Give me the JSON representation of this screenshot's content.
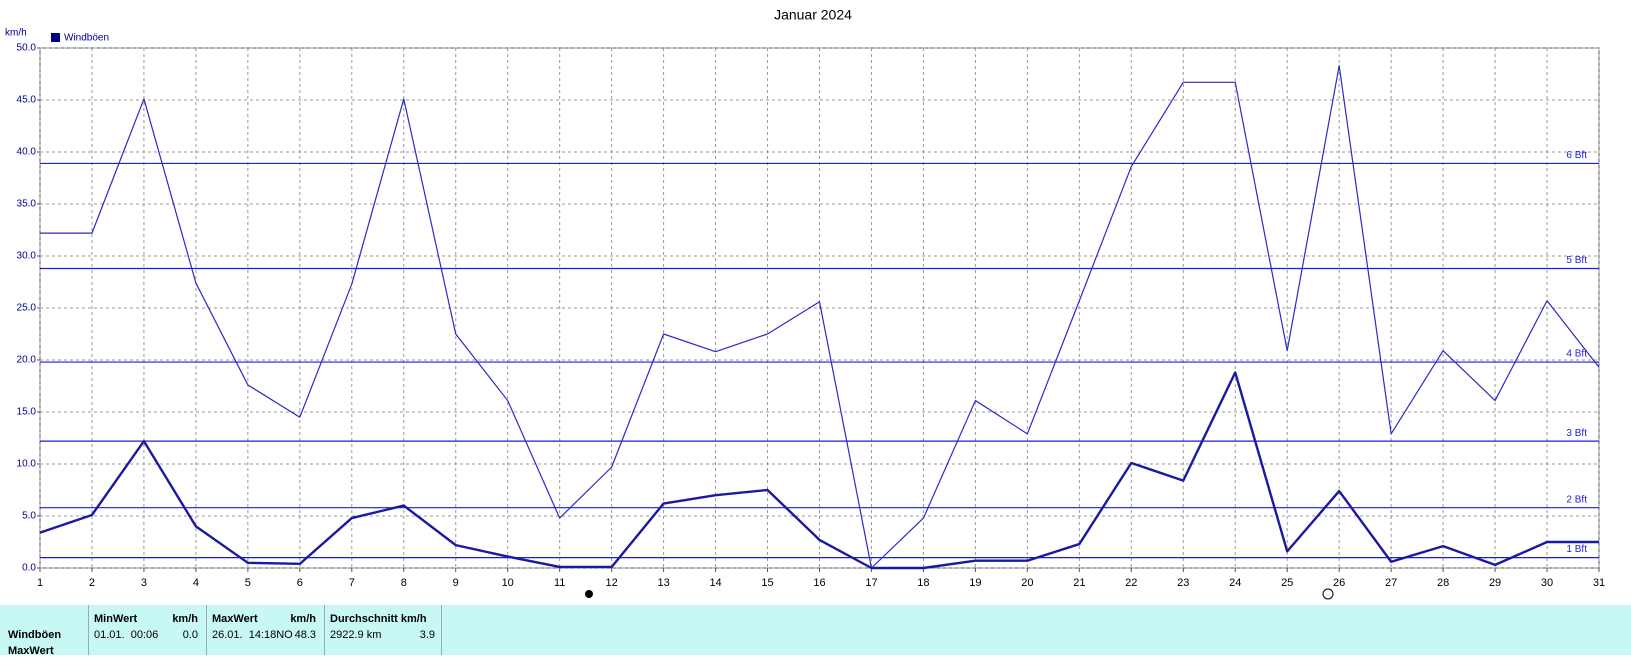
{
  "chart_data": {
    "type": "line",
    "title": "Januar 2024",
    "y_unit": "km/h",
    "x": [
      1,
      2,
      3,
      4,
      5,
      6,
      7,
      8,
      9,
      10,
      11,
      12,
      13,
      14,
      15,
      16,
      17,
      18,
      19,
      20,
      21,
      22,
      23,
      24,
      25,
      26,
      27,
      28,
      29,
      30,
      31
    ],
    "xlim": [
      1,
      31
    ],
    "xticks": [
      1,
      2,
      3,
      4,
      5,
      6,
      7,
      8,
      9,
      10,
      11,
      12,
      13,
      14,
      15,
      16,
      17,
      18,
      19,
      20,
      21,
      22,
      23,
      24,
      25,
      26,
      27,
      28,
      29,
      30,
      31
    ],
    "ylim": [
      0,
      50
    ],
    "yticks": [
      {
        "value": 0,
        "label": "0.0"
      },
      {
        "value": 5,
        "label": "5.0"
      },
      {
        "value": 10,
        "label": "10.0"
      },
      {
        "value": 15,
        "label": "15.0"
      },
      {
        "value": 20,
        "label": "20.0"
      },
      {
        "value": 25,
        "label": "25.0"
      },
      {
        "value": 30,
        "label": "30.0"
      },
      {
        "value": 35,
        "label": "35.0"
      },
      {
        "value": 40,
        "label": "40.0"
      },
      {
        "value": 45,
        "label": "45.0"
      },
      {
        "value": 50,
        "label": "50.0"
      }
    ],
    "grid": true,
    "legend": "top-left",
    "series": [
      {
        "name": "Windböen",
        "color": "#00008b",
        "line_color": "#2a2ac8",
        "values": [
          32.2,
          32.2,
          45.1,
          27.4,
          17.6,
          14.5,
          27.3,
          45.1,
          22.5,
          16.1,
          4.8,
          9.7,
          22.5,
          20.8,
          22.5,
          25.6,
          0,
          4.8,
          16.1,
          12.9,
          25.7,
          38.6,
          46.7,
          46.7,
          20.9,
          48.3,
          12.9,
          20.9,
          16.1,
          25.7,
          19.3
        ]
      },
      {
        "color": "#1a1aa0",
        "values": [
          3.4,
          5.1,
          12.2,
          4.0,
          0.5,
          0.4,
          4.8,
          6.0,
          2.2,
          1.1,
          0.1,
          0.1,
          6.2,
          7.0,
          7.5,
          2.7,
          0,
          0,
          0.7,
          0.7,
          2.3,
          10.1,
          8.4,
          18.8,
          1.6,
          7.4,
          0.6,
          2.1,
          0.3,
          2.5,
          2.5
        ]
      }
    ],
    "reference_lines": [
      {
        "value": 1.0,
        "label": "1 Bft"
      },
      {
        "value": 5.8,
        "label": "2 Bft"
      },
      {
        "value": 12.2,
        "label": "3 Bft"
      },
      {
        "value": 19.8,
        "label": "4 Bft"
      },
      {
        "value": 28.8,
        "label": "5 Bft"
      },
      {
        "value": 38.9,
        "label": "6 Bft"
      }
    ],
    "reference_color": "#1c1cdc"
  },
  "table": {
    "columns": [
      "MinWert",
      "km/h",
      "MaxWert",
      "km/h",
      "Durchschnitt km/h"
    ],
    "rows": [
      {
        "label": "Windböen",
        "cells": [
          "01.01.  00:06",
          "0.0",
          "26.01.  14:18NO",
          "48.3",
          "2922.9 km",
          "3.9"
        ]
      },
      {
        "label": "MaxWert"
      }
    ]
  }
}
